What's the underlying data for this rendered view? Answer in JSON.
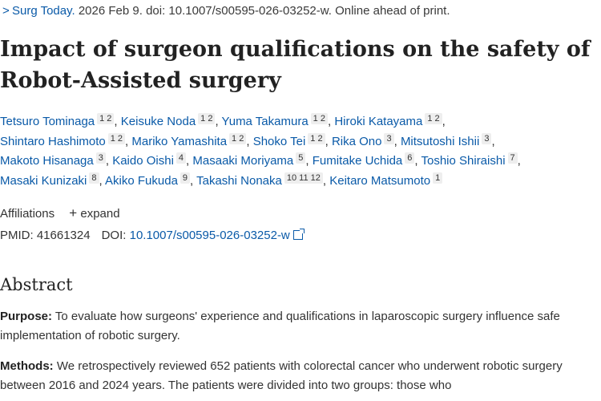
{
  "citation": {
    "journal": "Surg Today.",
    "rest": " 2026 Feb 9. doi: 10.1007/s00595-026-03252-w. Online ahead of print."
  },
  "title": "Impact of surgeon qualifications on the safety of Robot-Assisted surgery",
  "authors": [
    {
      "name": "Tetsuro Tominaga",
      "aff": "1 2"
    },
    {
      "name": "Keisuke Noda",
      "aff": "1 2"
    },
    {
      "name": "Yuma Takamura",
      "aff": "1 2"
    },
    {
      "name": "Hiroki Katayama",
      "aff": "1 2"
    },
    {
      "name": "Shintaro Hashimoto",
      "aff": "1 2"
    },
    {
      "name": "Mariko Yamashita",
      "aff": "1 2"
    },
    {
      "name": "Shoko Tei",
      "aff": "1 2"
    },
    {
      "name": "Rika Ono",
      "aff": "3"
    },
    {
      "name": "Mitsutoshi Ishii",
      "aff": "3"
    },
    {
      "name": "Makoto Hisanaga",
      "aff": "3"
    },
    {
      "name": "Kaido Oishi",
      "aff": "4"
    },
    {
      "name": "Masaaki Moriyama",
      "aff": "5"
    },
    {
      "name": "Fumitake Uchida",
      "aff": "6"
    },
    {
      "name": "Toshio Shiraishi",
      "aff": "7"
    },
    {
      "name": "Masaki Kunizaki",
      "aff": "8"
    },
    {
      "name": "Akiko Fukuda",
      "aff": "9"
    },
    {
      "name": "Takashi Nonaka",
      "aff": "10 11 12"
    },
    {
      "name": "Keitaro Matsumoto",
      "aff": "1"
    }
  ],
  "affiliations": {
    "label": "Affiliations",
    "expand_label": "expand"
  },
  "ids": {
    "pmid_label": "PMID:",
    "pmid": "41661324",
    "doi_label": "DOI:",
    "doi": "10.1007/s00595-026-03252-w"
  },
  "abstract": {
    "heading": "Abstract",
    "purpose_label": "Purpose:",
    "purpose_text": " To evaluate how surgeons' experience and qualifications in laparoscopic surgery influence safe implementation of robotic surgery.",
    "methods_label": "Methods:",
    "methods_text": " We retrospectively reviewed 652 patients with colorectal cancer who underwent robotic surgery between 2016 and 2024 years. The patients were divided into two groups: those who"
  }
}
